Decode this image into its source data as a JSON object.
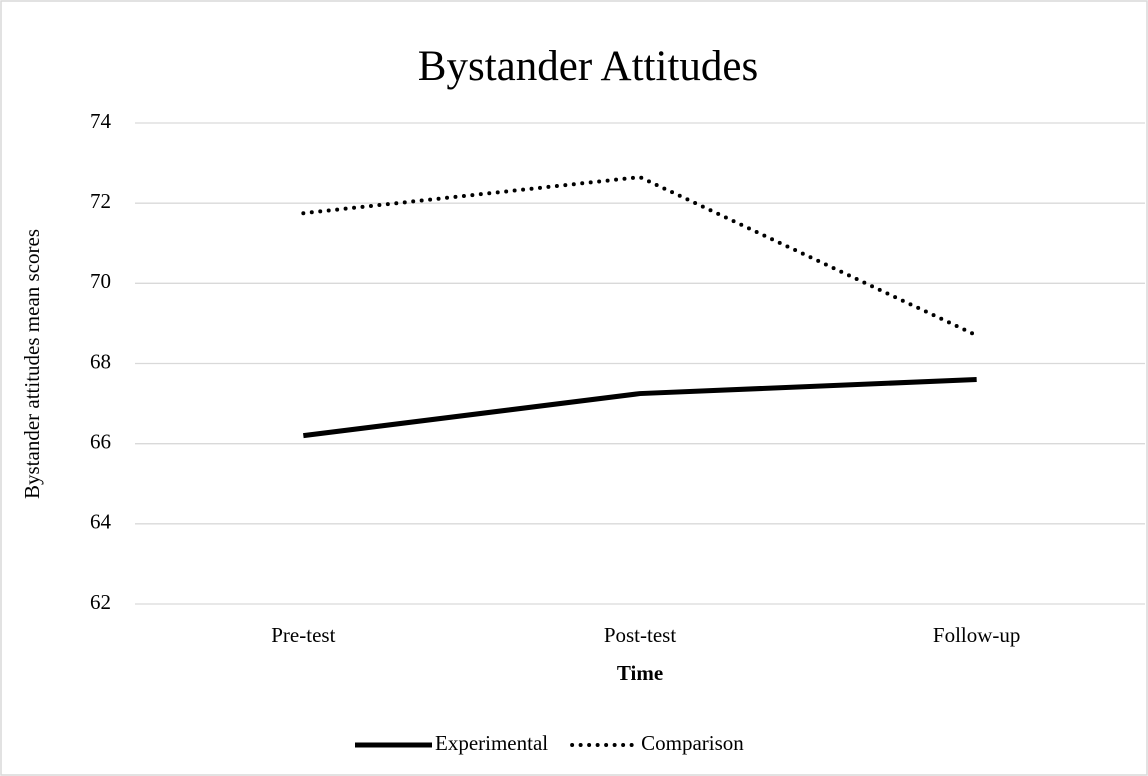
{
  "chart_data": {
    "type": "line",
    "title": "Bystander Attitudes",
    "x_label": "Time",
    "y_label": "Bystander attitudes mean scores",
    "categories": [
      "Pre-test",
      "Post-test",
      "Follow-up"
    ],
    "series": [
      {
        "name": "Experimental",
        "color": "#000000",
        "line_style": "solid",
        "values": [
          66.2,
          67.25,
          67.6
        ]
      },
      {
        "name": "Comparison",
        "color": "#000000",
        "line_style": "dotted",
        "values": [
          71.75,
          72.65,
          68.7
        ]
      }
    ],
    "ylim": [
      62,
      74
    ],
    "yticks": [
      62,
      64,
      66,
      68,
      70,
      72,
      74
    ],
    "grid": true,
    "legend": "bottom"
  }
}
